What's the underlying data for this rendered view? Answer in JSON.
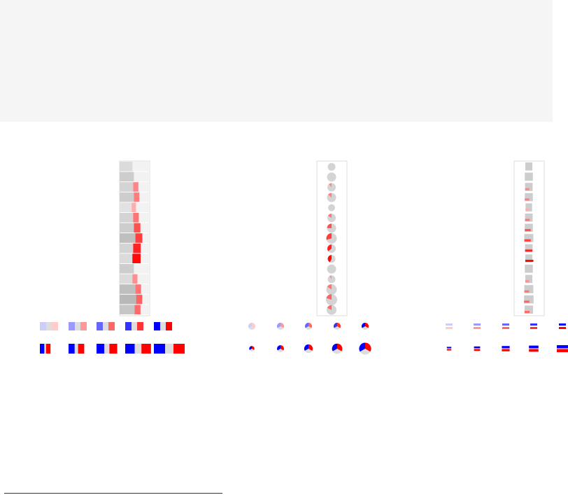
{
  "colors": {
    "background": "#ffffff",
    "header_band": "#f5f5f5",
    "track_gray": "#d9d9d9",
    "blue": "#0000ff",
    "red": "#ff0000"
  },
  "glyph_levels": [
    0.2,
    0.4,
    0.6,
    0.8,
    1.0
  ],
  "panels": [
    {
      "id": "bar-panel",
      "type": "stacked-bar"
    },
    {
      "id": "pie-panel",
      "type": "pie"
    },
    {
      "id": "hbar-panel",
      "type": "horizontal-bars"
    }
  ],
  "rows": [
    {
      "gray": 0.15,
      "red": 0.0
    },
    {
      "gray": 0.25,
      "red": 0.0
    },
    {
      "gray": 0.2,
      "red": 0.25
    },
    {
      "gray": 0.25,
      "red": 0.3
    },
    {
      "gray": 0.1,
      "red": 0.03
    },
    {
      "gray": 0.2,
      "red": 0.35
    },
    {
      "gray": 0.25,
      "red": 0.55
    },
    {
      "gray": 0.35,
      "red": 0.65
    },
    {
      "gray": 0.2,
      "red": 0.8
    },
    {
      "gray": 0.15,
      "red": 0.95
    },
    {
      "gray": 0.25,
      "red": 0.0
    },
    {
      "gray": 0.15,
      "red": 0.2
    },
    {
      "gray": 0.35,
      "red": 0.35
    },
    {
      "gray": 0.4,
      "red": 0.45
    },
    {
      "gray": 0.3,
      "red": 0.4
    }
  ]
}
